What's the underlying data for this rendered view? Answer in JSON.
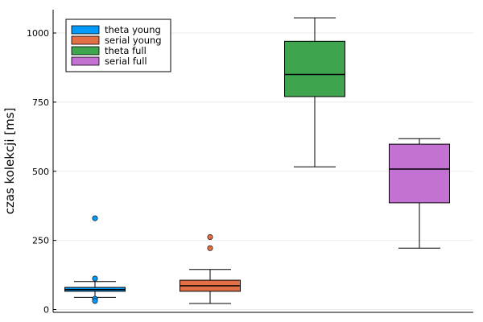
{
  "chart_data": {
    "type": "boxplot",
    "ylabel": "czas kolekcji [ms]",
    "xlabel": "",
    "ylim": [
      0,
      1080
    ],
    "yticks": [
      0,
      250,
      500,
      750,
      1000
    ],
    "grid": true,
    "legend_position": "top-left",
    "series": [
      {
        "name": "theta young",
        "color": "#009AFA",
        "min": 44,
        "q1": 66,
        "median": 72,
        "q3": 80,
        "max": 101,
        "outliers": [
          330,
          112,
          39,
          31
        ]
      },
      {
        "name": "serial young",
        "color": "#E36F47",
        "min": 22,
        "q1": 66,
        "median": 86,
        "q3": 106,
        "max": 145,
        "outliers": [
          262,
          222
        ]
      },
      {
        "name": "theta full",
        "color": "#3EA44E",
        "min": 516,
        "q1": 770,
        "median": 850,
        "q3": 970,
        "max": 1055,
        "outliers": []
      },
      {
        "name": "serial full",
        "color": "#C371D2",
        "min": 222,
        "q1": 386,
        "median": 508,
        "q3": 598,
        "max": 618,
        "outliers": []
      }
    ]
  }
}
